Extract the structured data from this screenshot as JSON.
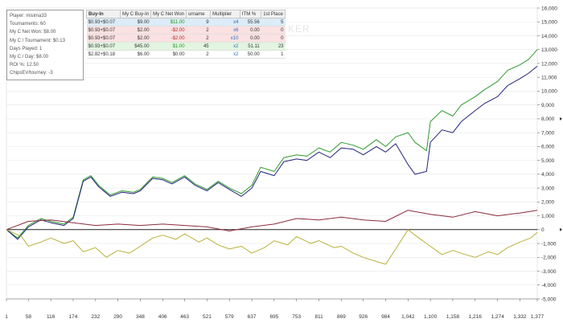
{
  "watermark": "KER",
  "stats": {
    "player": "Player: misima33",
    "tournaments": "Tournaments: 60",
    "net_won": "My C Net Won: $8.00",
    "per_tournament": "My C / Tournament: $0.13",
    "days_played": "Days Played: 1",
    "per_day": "My C / Day: $8.00",
    "roi": "ROI %: 12.50",
    "chips_ev": "ChipsEV/tourney: -3"
  },
  "table": {
    "headers": [
      "Buy-In",
      "My C Buy-In",
      "My C Net Won",
      "urname",
      "Multiplier",
      "ITM %",
      "1st Place"
    ],
    "rows": [
      {
        "buyin": "$0.93+$0.07",
        "my_buyin": "$9.00",
        "net": "$11.00",
        "count": "9",
        "mult": "x4",
        "itm": "55.56",
        "first": "5",
        "bg": "#dcecf8",
        "net_class": "pos"
      },
      {
        "buyin": "$0.93+$0.07",
        "my_buyin": "$2.00",
        "net": "-$2.00",
        "count": "2",
        "mult": "x6",
        "itm": "0.00",
        "first": "0",
        "bg": "#fbe1e1",
        "net_class": "neg"
      },
      {
        "buyin": "$0.93+$0.07",
        "my_buyin": "$2.00",
        "net": "-$2.00",
        "count": "2",
        "mult": "x10",
        "itm": "0.00",
        "first": "0",
        "bg": "#fbe1e1",
        "net_class": "neg"
      },
      {
        "buyin": "$0.93+$0.07",
        "my_buyin": "$45.00",
        "net": "$1.00",
        "count": "45",
        "mult": "x2",
        "itm": "51.11",
        "first": "23",
        "bg": "#e2f5e0",
        "net_class": "pos"
      },
      {
        "buyin": "$2.82+$0.18",
        "my_buyin": "$6.00",
        "net": "$0.00",
        "count": "2",
        "mult": "x2",
        "itm": "50.00",
        "first": "1",
        "bg": "#ffffff",
        "net_class": ""
      }
    ]
  },
  "chart_data": {
    "type": "line",
    "title": "",
    "xlabel": "",
    "ylabel": "",
    "xlim": [
      1,
      1377
    ],
    "ylim": [
      -5000,
      16000
    ],
    "x_ticks": [
      "1",
      "58",
      "116",
      "174",
      "232",
      "290",
      "348",
      "406",
      "463",
      "521",
      "579",
      "637",
      "695",
      "753",
      "811",
      "869",
      "926",
      "984",
      "1,042",
      "1,100",
      "1,158",
      "1,216",
      "1,274",
      "1,332",
      "1,377"
    ],
    "y_ticks": [
      "-5,000",
      "-4,000",
      "-3,000",
      "-2,000",
      "-1,000",
      "0",
      "1,000",
      "2,000",
      "3,000",
      "4,000",
      "5,000",
      "6,000",
      "7,000",
      "8,000",
      "9,000",
      "10,000",
      "11,000",
      "12,000",
      "13,000",
      "14,000",
      "15,000",
      "16,000"
    ],
    "series": [
      {
        "name": "Chips won (green)",
        "color": "#2e9a2e",
        "x": [
          1,
          30,
          58,
          90,
          116,
          150,
          174,
          200,
          220,
          240,
          270,
          300,
          330,
          348,
          380,
          406,
          430,
          463,
          490,
          521,
          550,
          579,
          610,
          637,
          660,
          695,
          720,
          753,
          780,
          811,
          840,
          869,
          900,
          926,
          960,
          984,
          1010,
          1042,
          1060,
          1090,
          1100,
          1130,
          1158,
          1180,
          1216,
          1240,
          1274,
          1300,
          1332,
          1355,
          1377
        ],
        "y": [
          0,
          -600,
          300,
          800,
          600,
          400,
          900,
          3600,
          3900,
          3200,
          2500,
          2800,
          2700,
          2900,
          3800,
          3700,
          3400,
          3900,
          3300,
          2900,
          3500,
          3000,
          2600,
          3200,
          4500,
          4200,
          5200,
          5400,
          5300,
          5900,
          5600,
          6300,
          6100,
          5800,
          6500,
          6000,
          6700,
          7000,
          6300,
          5700,
          7800,
          8600,
          8200,
          9000,
          9600,
          10100,
          10700,
          11500,
          11900,
          12300,
          13000
        ]
      },
      {
        "name": "Chips won (blue)",
        "color": "#23237a",
        "x": [
          1,
          30,
          58,
          90,
          116,
          150,
          174,
          200,
          220,
          240,
          270,
          300,
          330,
          348,
          380,
          406,
          430,
          463,
          490,
          521,
          550,
          579,
          610,
          637,
          660,
          695,
          720,
          753,
          780,
          811,
          840,
          869,
          900,
          926,
          960,
          984,
          1010,
          1042,
          1060,
          1090,
          1100,
          1130,
          1158,
          1180,
          1216,
          1240,
          1274,
          1300,
          1332,
          1355,
          1377
        ],
        "y": [
          0,
          -700,
          200,
          700,
          500,
          300,
          800,
          3500,
          3800,
          3100,
          2400,
          2700,
          2600,
          2800,
          3700,
          3600,
          3300,
          3800,
          3200,
          2800,
          3400,
          2900,
          2400,
          3000,
          4200,
          3900,
          4900,
          5100,
          5000,
          5600,
          5200,
          5900,
          5800,
          5400,
          6000,
          5600,
          6200,
          4700,
          4000,
          4200,
          6300,
          7200,
          7000,
          7800,
          8600,
          9100,
          9600,
          10400,
          10900,
          11300,
          11800
        ]
      },
      {
        "name": "Red line",
        "color": "#8c2b3c",
        "x": [
          1,
          58,
          116,
          174,
          232,
          290,
          348,
          406,
          463,
          521,
          579,
          637,
          695,
          753,
          811,
          869,
          926,
          984,
          1042,
          1100,
          1158,
          1216,
          1274,
          1332,
          1377
        ],
        "y": [
          0,
          600,
          700,
          500,
          300,
          400,
          300,
          400,
          300,
          200,
          -100,
          200,
          400,
          800,
          700,
          900,
          700,
          600,
          1400,
          1100,
          900,
          1300,
          1000,
          1200,
          1400
        ]
      },
      {
        "name": "Yellow line",
        "color": "#b8b13a",
        "x": [
          1,
          40,
          58,
          90,
          116,
          150,
          174,
          200,
          232,
          260,
          290,
          320,
          348,
          380,
          406,
          440,
          463,
          500,
          521,
          550,
          579,
          610,
          637,
          670,
          695,
          730,
          753,
          790,
          811,
          850,
          869,
          900,
          926,
          960,
          984,
          1010,
          1042,
          1070,
          1100,
          1130,
          1158,
          1190,
          1216,
          1250,
          1274,
          1300,
          1332,
          1360,
          1377
        ],
        "y": [
          0,
          -500,
          -1200,
          -900,
          -600,
          -1000,
          -800,
          -1600,
          -1300,
          -2000,
          -1500,
          -1700,
          -1200,
          -600,
          -400,
          -700,
          -300,
          -900,
          -600,
          -1100,
          -1400,
          -1200,
          -1700,
          -1300,
          -800,
          -1100,
          -500,
          -1000,
          -800,
          -1300,
          -1200,
          -1700,
          -2000,
          -2300,
          -2500,
          -1400,
          0,
          -600,
          -1200,
          -1800,
          -1500,
          -1800,
          -2000,
          -1600,
          -1800,
          -1300,
          -900,
          -600,
          -200
        ]
      }
    ]
  }
}
